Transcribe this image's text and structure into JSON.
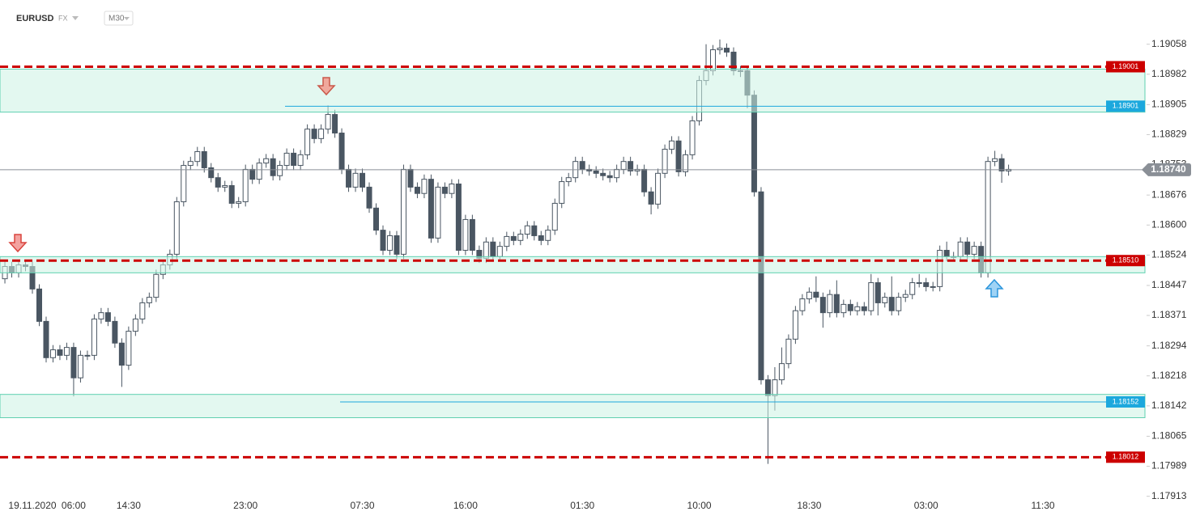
{
  "header": {
    "symbol": "EURUSD",
    "market": "FX",
    "interval": "M30"
  },
  "chart_data": {
    "type": "candlestick",
    "categories": [
      null,
      null,
      null,
      null,
      "19.11.2020",
      null,
      null,
      null,
      null,
      null,
      "06:00",
      null,
      null,
      null,
      null,
      null,
      null,
      null,
      "14:30",
      null,
      null,
      null,
      null,
      null,
      null,
      null,
      null,
      null,
      null,
      null,
      null,
      null,
      null,
      null,
      null,
      "23:00",
      null,
      null,
      null,
      null,
      null,
      null,
      null,
      null,
      null,
      null,
      null,
      null,
      null,
      null,
      null,
      null,
      "07:30",
      null,
      null,
      null,
      null,
      null,
      null,
      null,
      null,
      null,
      null,
      null,
      null,
      null,
      null,
      "16:00",
      null,
      null,
      null,
      null,
      null,
      null,
      null,
      null,
      null,
      null,
      null,
      null,
      null,
      null,
      null,
      null,
      "01:30",
      null,
      null,
      null,
      null,
      null,
      null,
      null,
      null,
      null,
      null,
      null,
      null,
      null,
      null,
      null,
      null,
      "10:00",
      null,
      null,
      null,
      null,
      null,
      null,
      null,
      null,
      null,
      null,
      null,
      null,
      null,
      null,
      null,
      "18:30",
      null,
      null,
      null,
      null,
      null,
      null,
      null,
      null,
      null,
      null,
      null,
      null,
      null,
      null,
      null,
      null,
      "03:00",
      null,
      null,
      null,
      null,
      null,
      null,
      null,
      null,
      null,
      null,
      null,
      null,
      null,
      null,
      null,
      null,
      "11:30"
    ],
    "open": [
      1.18464,
      1.18495,
      1.18479,
      1.18499,
      1.18495,
      1.18438,
      1.18356,
      1.18264,
      1.18284,
      1.1827,
      1.1829,
      1.18213,
      1.1827,
      1.1827,
      1.18362,
      1.18378,
      1.18356,
      1.18301,
      1.18245,
      1.18331,
      1.18362,
      1.18403,
      1.18417,
      1.18475,
      1.18499,
      1.18526,
      1.18659,
      1.18751,
      1.18761,
      1.18786,
      1.18745,
      1.1872,
      1.18696,
      1.187,
      1.18655,
      1.18659,
      1.18741,
      1.18716,
      1.18757,
      1.18768,
      1.18725,
      1.18751,
      1.18782,
      1.18751,
      1.18778,
      1.18843,
      1.18819,
      1.18843,
      1.1888,
      1.18833,
      1.18741,
      1.18696,
      1.18731,
      1.18696,
      1.18643,
      1.18587,
      1.18536,
      1.18573,
      1.18526,
      1.18741,
      1.18696,
      1.1868,
      1.18716,
      1.18567,
      1.18696,
      1.1868,
      1.18704,
      1.18536,
      1.18614,
      1.18536,
      1.18516,
      1.18557,
      1.1852,
      1.18546,
      1.18571,
      1.18561,
      1.18577,
      1.18598,
      1.18573,
      1.18561,
      1.18587,
      1.18655,
      1.1871,
      1.1872,
      1.18761,
      1.18741,
      1.18737,
      1.18731,
      1.18725,
      1.1872,
      1.18741,
      1.18761,
      1.18737,
      1.18741,
      1.18684,
      1.18653,
      1.18731,
      1.18792,
      1.18813,
      1.18735,
      1.18778,
      1.18864,
      1.18966,
      1.18991,
      1.19044,
      1.19048,
      1.19038,
      1.18991,
      1.18991,
      1.18929,
      1.18684,
      1.18208,
      1.18168,
      1.18208,
      1.18249,
      1.18311,
      1.18383,
      1.18413,
      1.1843,
      1.18417,
      1.18378,
      1.18424,
      1.18378,
      1.18399,
      1.18383,
      1.18393,
      1.18383,
      1.18454,
      1.18403,
      1.18417,
      1.18383,
      1.18417,
      1.18424,
      1.18454,
      1.18454,
      1.18444,
      1.18444,
      1.18536,
      1.1852,
      1.1852,
      1.18557,
      1.18526,
      1.18546,
      1.18479,
      1.18761,
      1.18768,
      1.18737,
      null,
      null,
      null,
      null,
      null
    ],
    "high": [
      1.18507,
      1.18507,
      1.18511,
      1.18511,
      1.18507,
      1.1845,
      1.18368,
      1.18296,
      1.18296,
      1.18302,
      1.18302,
      1.18282,
      1.18282,
      1.18374,
      1.1839,
      1.1839,
      1.18368,
      1.18313,
      1.18343,
      1.18374,
      1.18415,
      1.18429,
      1.18487,
      1.18511,
      1.18538,
      1.18671,
      1.18763,
      1.18773,
      1.18798,
      1.18798,
      1.18757,
      1.18732,
      1.18712,
      1.18712,
      1.18671,
      1.18753,
      1.18753,
      1.18769,
      1.1878,
      1.1878,
      1.18763,
      1.18794,
      1.18794,
      1.1879,
      1.18855,
      1.18855,
      1.18855,
      1.18903,
      1.18892,
      1.18845,
      1.18753,
      1.18743,
      1.18743,
      1.18708,
      1.18655,
      1.18599,
      1.18585,
      1.18585,
      1.18753,
      1.18753,
      1.18708,
      1.18728,
      1.18728,
      1.18708,
      1.18708,
      1.18716,
      1.18716,
      1.18626,
      1.18626,
      1.18548,
      1.18569,
      1.18569,
      1.18558,
      1.18583,
      1.18583,
      1.18589,
      1.1861,
      1.1861,
      1.18585,
      1.18599,
      1.18667,
      1.18722,
      1.18732,
      1.18773,
      1.18773,
      1.18753,
      1.18749,
      1.18743,
      1.18737,
      1.18753,
      1.18773,
      1.18773,
      1.18753,
      1.18753,
      1.18696,
      1.18743,
      1.18804,
      1.18825,
      1.18825,
      1.1879,
      1.18876,
      1.18978,
      1.19058,
      1.19056,
      1.1907,
      1.1906,
      1.1905,
      1.19003,
      1.19003,
      1.18941,
      1.18696,
      1.1822,
      1.1824,
      1.1829,
      1.18323,
      1.18395,
      1.18425,
      1.18442,
      1.1847,
      1.18429,
      1.18436,
      1.1846,
      1.18411,
      1.18411,
      1.18405,
      1.18405,
      1.18476,
      1.18466,
      1.18429,
      1.1847,
      1.18429,
      1.18436,
      1.18466,
      1.18476,
      1.18466,
      1.18456,
      1.18548,
      1.18558,
      1.18532,
      1.18569,
      1.18569,
      1.18558,
      1.18558,
      1.18773,
      1.18788,
      1.1878,
      1.18753,
      null,
      null,
      null,
      null,
      null
    ],
    "low": [
      1.18452,
      1.18467,
      1.18467,
      1.18483,
      1.18426,
      1.18344,
      1.18252,
      1.18252,
      1.18258,
      1.18258,
      1.18166,
      1.18201,
      1.18258,
      1.18258,
      1.1835,
      1.18344,
      1.18289,
      1.1819,
      1.18233,
      1.18319,
      1.1835,
      1.18391,
      1.18405,
      1.18463,
      1.18487,
      1.18514,
      1.18647,
      1.18739,
      1.18749,
      1.18733,
      1.18708,
      1.18684,
      1.18684,
      1.18643,
      1.18643,
      1.18647,
      1.18704,
      1.18704,
      1.18745,
      1.18713,
      1.18713,
      1.18739,
      1.18739,
      1.18739,
      1.18766,
      1.18807,
      1.18807,
      1.18831,
      1.18821,
      1.18729,
      1.18684,
      1.18684,
      1.18684,
      1.18631,
      1.18575,
      1.18524,
      1.18524,
      1.18514,
      1.18514,
      1.18684,
      1.18668,
      1.18668,
      1.18555,
      1.18555,
      1.18668,
      1.18668,
      1.18524,
      1.18524,
      1.18524,
      1.18504,
      1.18504,
      1.18508,
      1.18508,
      1.18534,
      1.18549,
      1.18549,
      1.18565,
      1.18561,
      1.18549,
      1.18549,
      1.18575,
      1.18643,
      1.18698,
      1.18708,
      1.18729,
      1.18725,
      1.18719,
      1.18713,
      1.18708,
      1.18708,
      1.18729,
      1.18725,
      1.18725,
      1.18672,
      1.18627,
      1.18641,
      1.18719,
      1.1878,
      1.18723,
      1.18723,
      1.18766,
      1.18852,
      1.18954,
      1.18979,
      1.19032,
      1.19026,
      1.18979,
      1.18975,
      1.18896,
      1.18672,
      1.18196,
      1.17995,
      1.1813,
      1.18196,
      1.18237,
      1.18299,
      1.18371,
      1.18401,
      1.18405,
      1.1834,
      1.18366,
      1.18366,
      1.18366,
      1.18371,
      1.18371,
      1.18371,
      1.18371,
      1.18371,
      1.18391,
      1.18371,
      1.18371,
      1.18405,
      1.18412,
      1.18442,
      1.18432,
      1.18432,
      1.18432,
      1.18508,
      1.18508,
      1.18508,
      1.18514,
      1.18514,
      1.18467,
      1.18467,
      1.18749,
      1.18707,
      1.18725,
      null,
      null,
      null,
      null,
      null
    ],
    "close": [
      1.18495,
      1.18479,
      1.18499,
      1.18495,
      1.18438,
      1.18356,
      1.18264,
      1.18284,
      1.1827,
      1.1829,
      1.18213,
      1.1827,
      1.1827,
      1.18362,
      1.18378,
      1.18356,
      1.18301,
      1.18245,
      1.18331,
      1.18362,
      1.18403,
      1.18417,
      1.18475,
      1.18499,
      1.18526,
      1.18659,
      1.18751,
      1.18761,
      1.18786,
      1.18745,
      1.1872,
      1.18696,
      1.187,
      1.18655,
      1.18659,
      1.18741,
      1.18716,
      1.18757,
      1.18768,
      1.18725,
      1.18751,
      1.18782,
      1.18751,
      1.18778,
      1.18843,
      1.18819,
      1.18843,
      1.1888,
      1.18833,
      1.18741,
      1.18696,
      1.18731,
      1.18696,
      1.18643,
      1.18587,
      1.18536,
      1.18573,
      1.18526,
      1.18741,
      1.18696,
      1.1868,
      1.18716,
      1.18567,
      1.18696,
      1.1868,
      1.18704,
      1.18536,
      1.18614,
      1.18536,
      1.18516,
      1.18557,
      1.1852,
      1.18546,
      1.18571,
      1.18561,
      1.18577,
      1.18598,
      1.18573,
      1.18561,
      1.18587,
      1.18655,
      1.1871,
      1.1872,
      1.18761,
      1.18741,
      1.18737,
      1.18731,
      1.18725,
      1.1872,
      1.18741,
      1.18761,
      1.18737,
      1.18741,
      1.18684,
      1.18653,
      1.18731,
      1.18792,
      1.18813,
      1.18735,
      1.18778,
      1.18864,
      1.18966,
      1.18991,
      1.19044,
      1.19048,
      1.19038,
      1.18991,
      1.18991,
      1.18929,
      1.18684,
      1.18208,
      1.18168,
      1.18208,
      1.18249,
      1.18311,
      1.18383,
      1.18413,
      1.1843,
      1.18417,
      1.18378,
      1.18424,
      1.18378,
      1.18399,
      1.18383,
      1.18393,
      1.18383,
      1.18454,
      1.18403,
      1.18417,
      1.18383,
      1.18417,
      1.18424,
      1.18454,
      1.18454,
      1.18444,
      1.18444,
      1.18536,
      1.1852,
      1.1852,
      1.18557,
      1.18526,
      1.18546,
      1.18479,
      1.18761,
      1.18768,
      1.18737,
      1.18741,
      null,
      null,
      null,
      null,
      null
    ],
    "up_color": "#ffffff",
    "down_color": "#4a5662",
    "outline_color": "#4a5662",
    "ylim": [
      1.179,
      1.1917
    ],
    "yticks": [
      1.19058,
      1.18982,
      1.18905,
      1.18829,
      1.18753,
      1.18676,
      {
        "value": 1.186,
        "label": "1.18600"
      },
      1.18524,
      1.18447,
      1.18371,
      1.18294,
      1.18218,
      1.18142,
      1.18065,
      1.17989,
      1.17913
    ],
    "zones": [
      {
        "from": 1.18995,
        "to": 1.18886
      },
      {
        "from": 1.1852,
        "to": 1.18479
      },
      {
        "from": 1.18171,
        "to": 1.18112
      }
    ],
    "zone_color": "#ccf2e4",
    "levels": [
      {
        "value": 1.19001,
        "label": "1.19001",
        "color": "#cc0000",
        "style": "dashed"
      },
      {
        "value": 1.18901,
        "label": "1.18901",
        "color": "#1ca8dd",
        "style": "solid"
      },
      {
        "value": 1.1851,
        "label": "1.18510",
        "color": "#cc0000",
        "style": "dashed"
      },
      {
        "value": 1.18152,
        "label": "1.18152",
        "color": "#1ca8dd",
        "style": "solid"
      },
      {
        "value": 1.18012,
        "label": "1.18012",
        "color": "#cc0000",
        "style": "dashed"
      }
    ],
    "current_price": {
      "value": 1.1874,
      "label": "1.18740",
      "color": "#8a8f96"
    }
  }
}
